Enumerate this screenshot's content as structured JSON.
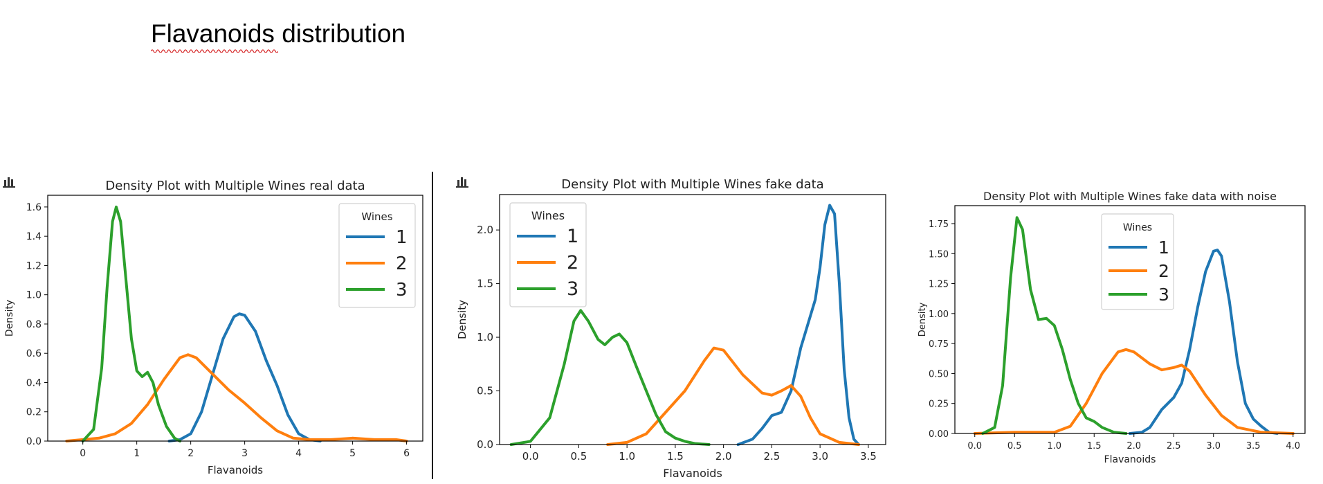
{
  "page": {
    "title": "Flavanoids distribution"
  },
  "icons": {
    "chart_icon": "bar-chart-icon"
  },
  "colors": {
    "wine1": "#1f77b4",
    "wine2": "#ff7f0e",
    "wine3": "#2ca02c",
    "spellcheck": "#d62728"
  },
  "chart_data": [
    {
      "type": "line",
      "title": "Density Plot with Multiple Wines real data",
      "xlabel": "Flavanoids",
      "ylabel": "Density",
      "xlim": [
        -0.65,
        6.3
      ],
      "ylim": [
        0,
        1.68
      ],
      "xticks": [
        0,
        1,
        2,
        3,
        4,
        5,
        6
      ],
      "xtick_labels": [
        "0",
        "1",
        "2",
        "3",
        "4",
        "5",
        "6"
      ],
      "yticks": [
        0,
        0.2,
        0.4,
        0.6,
        0.8,
        1.0,
        1.2,
        1.4,
        1.6
      ],
      "ytick_labels": [
        "0.0",
        "0.2",
        "0.4",
        "0.6",
        "0.8",
        "1.0",
        "1.2",
        "1.4",
        "1.6"
      ],
      "legend": {
        "title": "Wines",
        "position": "top-right"
      },
      "series": [
        {
          "name": "1",
          "color": "#1f77b4",
          "points": [
            [
              1.6,
              0
            ],
            [
              1.8,
              0.01
            ],
            [
              2.0,
              0.05
            ],
            [
              2.2,
              0.2
            ],
            [
              2.4,
              0.45
            ],
            [
              2.6,
              0.7
            ],
            [
              2.8,
              0.85
            ],
            [
              2.9,
              0.87
            ],
            [
              3.0,
              0.86
            ],
            [
              3.2,
              0.75
            ],
            [
              3.4,
              0.55
            ],
            [
              3.6,
              0.38
            ],
            [
              3.8,
              0.18
            ],
            [
              4.0,
              0.05
            ],
            [
              4.2,
              0.01
            ],
            [
              4.4,
              0
            ]
          ]
        },
        {
          "name": "2",
          "color": "#ff7f0e",
          "points": [
            [
              -0.3,
              0
            ],
            [
              0,
              0.01
            ],
            [
              0.3,
              0.02
            ],
            [
              0.6,
              0.05
            ],
            [
              0.9,
              0.12
            ],
            [
              1.2,
              0.25
            ],
            [
              1.5,
              0.42
            ],
            [
              1.8,
              0.57
            ],
            [
              1.95,
              0.59
            ],
            [
              2.1,
              0.57
            ],
            [
              2.4,
              0.46
            ],
            [
              2.7,
              0.35
            ],
            [
              3.0,
              0.26
            ],
            [
              3.3,
              0.16
            ],
            [
              3.6,
              0.07
            ],
            [
              3.9,
              0.02
            ],
            [
              4.2,
              0.01
            ],
            [
              4.6,
              0.01
            ],
            [
              5.0,
              0.02
            ],
            [
              5.4,
              0.01
            ],
            [
              5.8,
              0.01
            ],
            [
              6.0,
              0
            ]
          ]
        },
        {
          "name": "3",
          "color": "#2ca02c",
          "points": [
            [
              0,
              0
            ],
            [
              0.2,
              0.08
            ],
            [
              0.35,
              0.5
            ],
            [
              0.45,
              1.05
            ],
            [
              0.55,
              1.5
            ],
            [
              0.62,
              1.6
            ],
            [
              0.7,
              1.5
            ],
            [
              0.8,
              1.1
            ],
            [
              0.9,
              0.7
            ],
            [
              1.0,
              0.48
            ],
            [
              1.1,
              0.44
            ],
            [
              1.2,
              0.47
            ],
            [
              1.3,
              0.4
            ],
            [
              1.4,
              0.25
            ],
            [
              1.55,
              0.1
            ],
            [
              1.7,
              0.02
            ],
            [
              1.8,
              0
            ]
          ]
        }
      ]
    },
    {
      "type": "line",
      "title": "Density Plot with Multiple Wines fake data",
      "xlabel": "Flavanoids",
      "ylabel": "Density",
      "xlim": [
        -0.32,
        3.68
      ],
      "ylim": [
        0,
        2.33
      ],
      "xticks": [
        0,
        0.5,
        1.0,
        1.5,
        2.0,
        2.5,
        3.0,
        3.5
      ],
      "xtick_labels": [
        "0.0",
        "0.5",
        "1.0",
        "1.5",
        "2.0",
        "2.5",
        "3.0",
        "3.5"
      ],
      "yticks": [
        0,
        0.5,
        1.0,
        1.5,
        2.0
      ],
      "ytick_labels": [
        "0.0",
        "0.5",
        "1.0",
        "1.5",
        "2.0"
      ],
      "legend": {
        "title": "Wines",
        "position": "top-left"
      },
      "series": [
        {
          "name": "1",
          "color": "#1f77b4",
          "points": [
            [
              2.15,
              0
            ],
            [
              2.3,
              0.05
            ],
            [
              2.4,
              0.15
            ],
            [
              2.5,
              0.27
            ],
            [
              2.6,
              0.3
            ],
            [
              2.7,
              0.5
            ],
            [
              2.8,
              0.9
            ],
            [
              2.9,
              1.2
            ],
            [
              2.95,
              1.35
            ],
            [
              3.0,
              1.65
            ],
            [
              3.05,
              2.05
            ],
            [
              3.1,
              2.23
            ],
            [
              3.15,
              2.15
            ],
            [
              3.2,
              1.5
            ],
            [
              3.25,
              0.7
            ],
            [
              3.3,
              0.25
            ],
            [
              3.35,
              0.05
            ],
            [
              3.4,
              0
            ]
          ]
        },
        {
          "name": "2",
          "color": "#ff7f0e",
          "points": [
            [
              0.8,
              0
            ],
            [
              1.0,
              0.02
            ],
            [
              1.2,
              0.1
            ],
            [
              1.4,
              0.3
            ],
            [
              1.6,
              0.5
            ],
            [
              1.8,
              0.78
            ],
            [
              1.9,
              0.9
            ],
            [
              2.0,
              0.88
            ],
            [
              2.2,
              0.65
            ],
            [
              2.4,
              0.48
            ],
            [
              2.5,
              0.46
            ],
            [
              2.6,
              0.5
            ],
            [
              2.7,
              0.55
            ],
            [
              2.8,
              0.45
            ],
            [
              2.9,
              0.25
            ],
            [
              3.0,
              0.1
            ],
            [
              3.2,
              0.02
            ],
            [
              3.4,
              0
            ]
          ]
        },
        {
          "name": "3",
          "color": "#2ca02c",
          "points": [
            [
              -0.2,
              0
            ],
            [
              0,
              0.03
            ],
            [
              0.2,
              0.25
            ],
            [
              0.35,
              0.75
            ],
            [
              0.45,
              1.15
            ],
            [
              0.52,
              1.25
            ],
            [
              0.6,
              1.15
            ],
            [
              0.7,
              0.98
            ],
            [
              0.77,
              0.93
            ],
            [
              0.85,
              1.0
            ],
            [
              0.92,
              1.03
            ],
            [
              1.0,
              0.95
            ],
            [
              1.1,
              0.72
            ],
            [
              1.2,
              0.5
            ],
            [
              1.3,
              0.28
            ],
            [
              1.4,
              0.12
            ],
            [
              1.5,
              0.06
            ],
            [
              1.6,
              0.03
            ],
            [
              1.7,
              0.01
            ],
            [
              1.85,
              0
            ]
          ]
        }
      ]
    },
    {
      "type": "line",
      "title": "Density Plot with Multiple Wines fake data with noise",
      "xlabel": "Flavanoids",
      "ylabel": "Density",
      "xlim": [
        -0.25,
        4.15
      ],
      "ylim": [
        0,
        1.9
      ],
      "xticks": [
        0,
        0.5,
        1.0,
        1.5,
        2.0,
        2.5,
        3.0,
        3.5,
        4.0
      ],
      "xtick_labels": [
        "0.0",
        "0.5",
        "1.0",
        "1.5",
        "2.0",
        "2.5",
        "3.0",
        "3.5",
        "4.0"
      ],
      "yticks": [
        0,
        0.25,
        0.5,
        0.75,
        1.0,
        1.25,
        1.5,
        1.75
      ],
      "ytick_labels": [
        "0.00",
        "0.25",
        "0.50",
        "0.75",
        "1.00",
        "1.25",
        "1.50",
        "1.75"
      ],
      "legend": {
        "title": "Wines",
        "position": "top-center"
      },
      "series": [
        {
          "name": "1",
          "color": "#1f77b4",
          "points": [
            [
              1.95,
              0
            ],
            [
              2.1,
              0.01
            ],
            [
              2.2,
              0.05
            ],
            [
              2.35,
              0.2
            ],
            [
              2.5,
              0.3
            ],
            [
              2.6,
              0.42
            ],
            [
              2.7,
              0.7
            ],
            [
              2.8,
              1.05
            ],
            [
              2.9,
              1.35
            ],
            [
              3.0,
              1.52
            ],
            [
              3.05,
              1.53
            ],
            [
              3.1,
              1.48
            ],
            [
              3.2,
              1.1
            ],
            [
              3.3,
              0.6
            ],
            [
              3.4,
              0.25
            ],
            [
              3.5,
              0.12
            ],
            [
              3.6,
              0.06
            ],
            [
              3.7,
              0.01
            ],
            [
              3.8,
              0
            ]
          ]
        },
        {
          "name": "2",
          "color": "#ff7f0e",
          "points": [
            [
              0,
              0
            ],
            [
              0.5,
              0.01
            ],
            [
              1.0,
              0.01
            ],
            [
              1.2,
              0.06
            ],
            [
              1.4,
              0.25
            ],
            [
              1.6,
              0.5
            ],
            [
              1.8,
              0.68
            ],
            [
              1.9,
              0.7
            ],
            [
              2.0,
              0.68
            ],
            [
              2.2,
              0.58
            ],
            [
              2.35,
              0.53
            ],
            [
              2.5,
              0.55
            ],
            [
              2.6,
              0.57
            ],
            [
              2.7,
              0.52
            ],
            [
              2.9,
              0.32
            ],
            [
              3.1,
              0.15
            ],
            [
              3.3,
              0.05
            ],
            [
              3.6,
              0.01
            ],
            [
              4.0,
              0
            ]
          ]
        },
        {
          "name": "3",
          "color": "#2ca02c",
          "points": [
            [
              0.1,
              0
            ],
            [
              0.25,
              0.05
            ],
            [
              0.35,
              0.4
            ],
            [
              0.45,
              1.3
            ],
            [
              0.53,
              1.8
            ],
            [
              0.6,
              1.7
            ],
            [
              0.7,
              1.2
            ],
            [
              0.8,
              0.95
            ],
            [
              0.9,
              0.96
            ],
            [
              1.0,
              0.9
            ],
            [
              1.1,
              0.7
            ],
            [
              1.2,
              0.45
            ],
            [
              1.3,
              0.25
            ],
            [
              1.4,
              0.13
            ],
            [
              1.5,
              0.1
            ],
            [
              1.6,
              0.05
            ],
            [
              1.75,
              0.01
            ],
            [
              1.9,
              0
            ]
          ]
        }
      ]
    }
  ]
}
